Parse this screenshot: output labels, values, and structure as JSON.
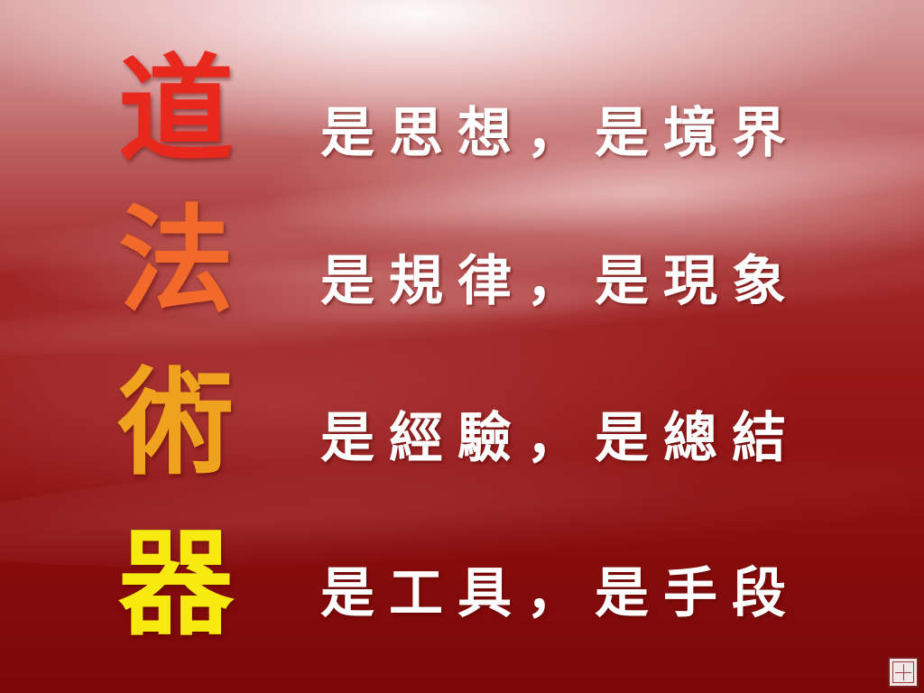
{
  "rows": [
    {
      "char": "道",
      "text": "是思想，是境界",
      "color": "#e8281c"
    },
    {
      "char": "法",
      "text": "是規律，是現象",
      "color": "#f26a2a"
    },
    {
      "char": "術",
      "text": "是經驗，是總結",
      "color": "#eea21e"
    },
    {
      "char": "器",
      "text": "是工具，是手段",
      "color": "#f7ea10"
    }
  ],
  "seal": {
    "icon": "seal-stamp-icon"
  }
}
